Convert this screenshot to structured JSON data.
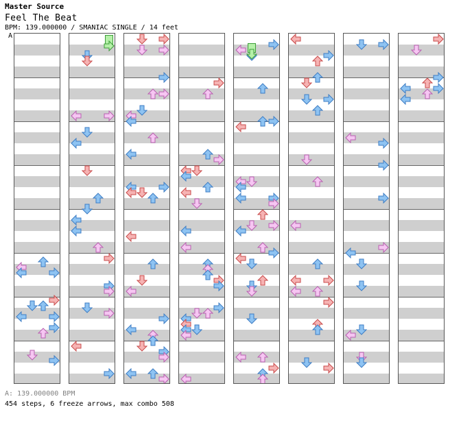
{
  "header": {
    "source": "Master Source",
    "title": "Feel The Beat",
    "info": "BPM: 139.000000 / SMANIAC SINGLE / 14 feet",
    "marker": "A"
  },
  "footer": {
    "bpm_line": "A: 139.000000 BPM",
    "stats_line": "454 steps, 6 freeze arrows, max combo 508"
  },
  "chart": {
    "columns": 8,
    "measures_per_column": 8,
    "lanes": [
      "left",
      "down",
      "up",
      "right"
    ],
    "colors": {
      "red_fill": "#f6b3b3",
      "red_stroke": "#c84a4a",
      "blue_fill": "#8ec3f2",
      "blue_stroke": "#3d7dc4",
      "pink_fill": "#f6c6f2",
      "pink_stroke": "#b860b0",
      "green_fill": "#b5f0a8",
      "green_stroke": "#3d9c3a",
      "band": "#cfcfcf"
    }
  }
}
